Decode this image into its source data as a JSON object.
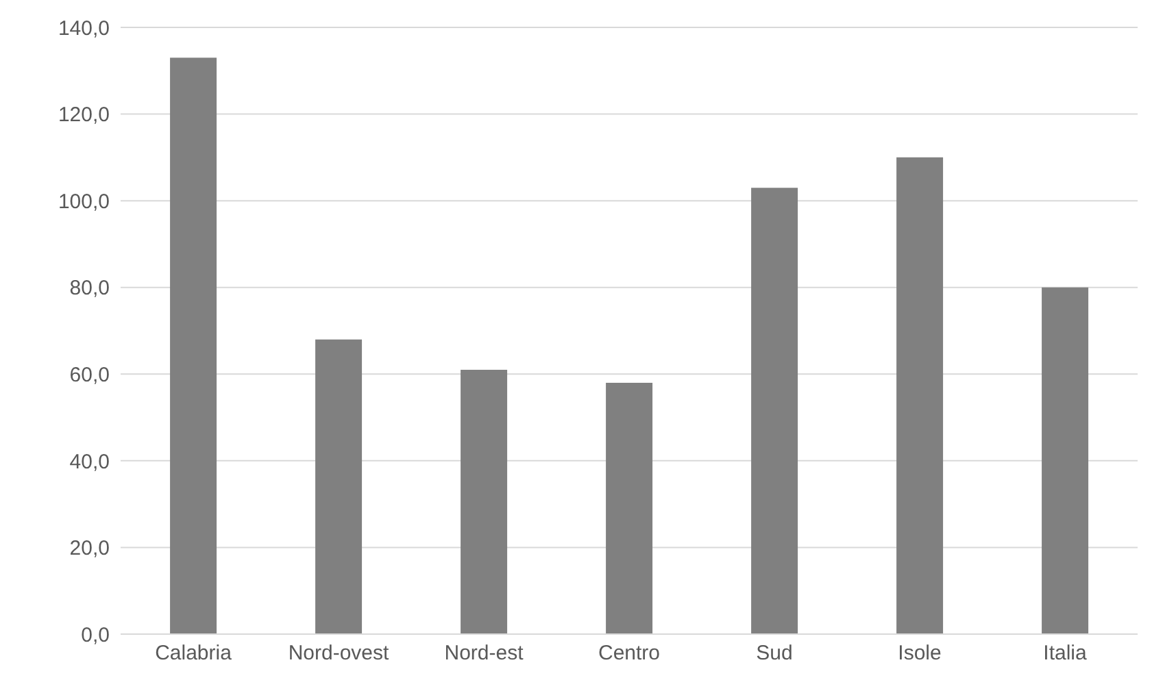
{
  "chart_data": {
    "type": "bar",
    "categories": [
      "Calabria",
      "Nord-ovest",
      "Nord-est",
      "Centro",
      "Sud",
      "Isole",
      "Italia"
    ],
    "values": [
      133,
      68,
      61,
      58,
      103,
      110,
      80
    ],
    "color": "#808080",
    "ylim": [
      0,
      140
    ],
    "yticks": [
      {
        "value": 0,
        "label": "0,0"
      },
      {
        "value": 20,
        "label": "20,0"
      },
      {
        "value": 40,
        "label": "40,0"
      },
      {
        "value": 60,
        "label": "60,0"
      },
      {
        "value": 80,
        "label": "80,0"
      },
      {
        "value": 100,
        "label": "100,0"
      },
      {
        "value": 120,
        "label": "120,0"
      },
      {
        "value": 140,
        "label": "140,0"
      }
    ],
    "grid": "y"
  }
}
